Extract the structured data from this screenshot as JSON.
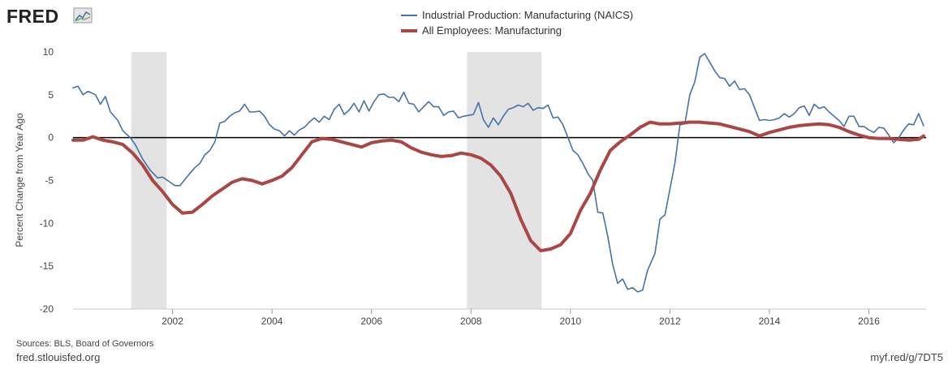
{
  "logo": {
    "text": "FRED"
  },
  "chart_data": {
    "type": "line",
    "title": "",
    "xlabel": "",
    "ylabel": "Percent Change from Year Ago",
    "xlim": [
      2000.0,
      2017.15
    ],
    "ylim": [
      -20,
      10
    ],
    "y_ticks": [
      10,
      5,
      0,
      -5,
      -10,
      -15,
      -20
    ],
    "x_ticks": [
      2002,
      2004,
      2006,
      2008,
      2010,
      2012,
      2014,
      2016
    ],
    "recessions": [
      [
        2001.17,
        2001.88
      ],
      [
        2007.92,
        2009.42
      ]
    ],
    "zero_line": true,
    "legend_position": "top-center",
    "series": [
      {
        "name": "Industrial Production: Manufacturing (NAICS)",
        "color": "#4572a7",
        "points": [
          [
            2000.0,
            5.8
          ],
          [
            2000.1,
            6.0
          ],
          [
            2000.2,
            5.0
          ],
          [
            2000.3,
            5.4
          ],
          [
            2000.45,
            5.0
          ],
          [
            2000.55,
            3.9
          ],
          [
            2000.65,
            4.8
          ],
          [
            2000.75,
            3.0
          ],
          [
            2000.9,
            2.0
          ],
          [
            2001.0,
            0.8
          ],
          [
            2001.15,
            0.0
          ],
          [
            2001.25,
            -0.8
          ],
          [
            2001.4,
            -2.5
          ],
          [
            2001.55,
            -3.8
          ],
          [
            2001.7,
            -4.7
          ],
          [
            2001.8,
            -4.6
          ],
          [
            2001.95,
            -5.2
          ],
          [
            2002.05,
            -5.6
          ],
          [
            2002.15,
            -5.6
          ],
          [
            2002.3,
            -4.5
          ],
          [
            2002.45,
            -3.5
          ],
          [
            2002.55,
            -3.0
          ],
          [
            2002.65,
            -2.0
          ],
          [
            2002.75,
            -1.5
          ],
          [
            2002.85,
            -0.5
          ],
          [
            2002.95,
            1.7
          ],
          [
            2003.05,
            1.9
          ],
          [
            2003.15,
            2.5
          ],
          [
            2003.25,
            2.9
          ],
          [
            2003.35,
            3.1
          ],
          [
            2003.45,
            3.9
          ],
          [
            2003.55,
            3.0
          ],
          [
            2003.65,
            3.0
          ],
          [
            2003.75,
            3.1
          ],
          [
            2003.85,
            2.5
          ],
          [
            2003.95,
            1.5
          ],
          [
            2004.05,
            1.0
          ],
          [
            2004.15,
            0.8
          ],
          [
            2004.25,
            0.2
          ],
          [
            2004.35,
            0.8
          ],
          [
            2004.45,
            0.3
          ],
          [
            2004.55,
            0.9
          ],
          [
            2004.65,
            1.2
          ],
          [
            2004.75,
            1.8
          ],
          [
            2004.85,
            2.3
          ],
          [
            2004.95,
            1.8
          ],
          [
            2005.05,
            2.5
          ],
          [
            2005.15,
            2.1
          ],
          [
            2005.25,
            3.3
          ],
          [
            2005.35,
            3.9
          ],
          [
            2005.45,
            2.7
          ],
          [
            2005.55,
            3.2
          ],
          [
            2005.65,
            4.0
          ],
          [
            2005.75,
            3.0
          ],
          [
            2005.85,
            4.3
          ],
          [
            2005.95,
            3.1
          ],
          [
            2006.05,
            4.2
          ],
          [
            2006.15,
            5.0
          ],
          [
            2006.25,
            5.1
          ],
          [
            2006.35,
            4.7
          ],
          [
            2006.45,
            4.7
          ],
          [
            2006.55,
            4.2
          ],
          [
            2006.65,
            5.3
          ],
          [
            2006.75,
            4.0
          ],
          [
            2006.85,
            3.9
          ],
          [
            2006.95,
            3.0
          ],
          [
            2007.05,
            3.6
          ],
          [
            2007.15,
            4.2
          ],
          [
            2007.25,
            3.6
          ],
          [
            2007.35,
            3.6
          ],
          [
            2007.45,
            2.6
          ],
          [
            2007.55,
            3.0
          ],
          [
            2007.65,
            3.1
          ],
          [
            2007.75,
            2.3
          ],
          [
            2007.85,
            2.5
          ],
          [
            2007.95,
            2.6
          ],
          [
            2008.05,
            2.7
          ],
          [
            2008.15,
            4.1
          ],
          [
            2008.25,
            2.1
          ],
          [
            2008.35,
            1.2
          ],
          [
            2008.45,
            2.3
          ],
          [
            2008.55,
            1.5
          ],
          [
            2008.65,
            2.5
          ],
          [
            2008.75,
            3.3
          ],
          [
            2008.85,
            3.5
          ],
          [
            2008.95,
            3.8
          ],
          [
            2009.05,
            3.6
          ],
          [
            2009.15,
            4.0
          ],
          [
            2009.25,
            3.2
          ],
          [
            2009.35,
            3.5
          ],
          [
            2009.45,
            3.4
          ],
          [
            2009.55,
            3.8
          ],
          [
            2009.65,
            2.3
          ],
          [
            2009.75,
            2.4
          ],
          [
            2009.85,
            1.5
          ],
          [
            2009.95,
            0.0
          ],
          [
            2010.05,
            -1.5
          ],
          [
            2010.15,
            -2.0
          ],
          [
            2010.25,
            -3.0
          ],
          [
            2010.35,
            -4.2
          ],
          [
            2010.45,
            -5.0
          ],
          [
            2010.55,
            -8.7
          ],
          [
            2010.65,
            -8.8
          ],
          [
            2010.75,
            -11.5
          ],
          [
            2010.85,
            -14.8
          ],
          [
            2010.95,
            -17.0
          ],
          [
            2011.05,
            -16.5
          ],
          [
            2011.15,
            -17.7
          ],
          [
            2011.25,
            -17.5
          ],
          [
            2011.35,
            -18.0
          ],
          [
            2011.45,
            -17.8
          ],
          [
            2011.55,
            -15.5
          ],
          [
            2011.7,
            -13.5
          ],
          [
            2011.8,
            -9.5
          ],
          [
            2011.9,
            -9.0
          ],
          [
            2012.0,
            -6.0
          ],
          [
            2012.1,
            -3.0
          ],
          [
            2012.2,
            1.5
          ],
          [
            2012.3,
            1.6
          ],
          [
            2012.4,
            5.0
          ],
          [
            2012.5,
            6.5
          ],
          [
            2012.6,
            9.4
          ],
          [
            2012.7,
            9.8
          ],
          [
            2012.8,
            8.8
          ],
          [
            2012.9,
            7.8
          ],
          [
            2013.0,
            7.0
          ],
          [
            2013.1,
            6.9
          ],
          [
            2013.2,
            6.0
          ],
          [
            2013.3,
            6.6
          ],
          [
            2013.4,
            5.6
          ],
          [
            2013.5,
            5.7
          ],
          [
            2013.6,
            5.0
          ],
          [
            2013.7,
            3.5
          ],
          [
            2013.8,
            2.0
          ],
          [
            2013.9,
            2.1
          ],
          [
            2014.0,
            2.0
          ],
          [
            2014.1,
            2.1
          ],
          [
            2014.2,
            2.3
          ],
          [
            2014.3,
            2.8
          ],
          [
            2014.4,
            2.4
          ],
          [
            2014.5,
            2.8
          ],
          [
            2014.6,
            3.5
          ],
          [
            2014.7,
            3.7
          ],
          [
            2014.8,
            2.6
          ],
          [
            2014.9,
            3.9
          ],
          [
            2015.0,
            3.4
          ],
          [
            2015.1,
            3.6
          ],
          [
            2015.2,
            3.0
          ],
          [
            2015.3,
            2.5
          ],
          [
            2015.4,
            2.0
          ],
          [
            2015.5,
            1.3
          ],
          [
            2015.6,
            2.5
          ],
          [
            2015.7,
            2.5
          ],
          [
            2015.8,
            1.3
          ],
          [
            2015.9,
            1.3
          ],
          [
            2016.0,
            0.9
          ],
          [
            2016.1,
            0.6
          ],
          [
            2016.2,
            1.2
          ],
          [
            2016.3,
            1.1
          ],
          [
            2016.4,
            0.3
          ],
          [
            2016.5,
            -0.6
          ],
          [
            2016.6,
            0.0
          ],
          [
            2016.7,
            0.9
          ],
          [
            2016.8,
            1.6
          ],
          [
            2016.9,
            1.5
          ],
          [
            2017.0,
            2.8
          ],
          [
            2017.1,
            1.4
          ]
        ]
      },
      {
        "name": "All Employees: Manufacturing",
        "color": "#aa4643",
        "points": [
          [
            2000.0,
            -0.3
          ],
          [
            2000.2,
            -0.3
          ],
          [
            2000.4,
            0.1
          ],
          [
            2000.6,
            -0.3
          ],
          [
            2000.8,
            -0.5
          ],
          [
            2001.0,
            -0.8
          ],
          [
            2001.2,
            -1.8
          ],
          [
            2001.4,
            -3.2
          ],
          [
            2001.6,
            -5.0
          ],
          [
            2001.8,
            -6.3
          ],
          [
            2002.0,
            -7.8
          ],
          [
            2002.2,
            -8.8
          ],
          [
            2002.4,
            -8.7
          ],
          [
            2002.6,
            -7.8
          ],
          [
            2002.8,
            -6.8
          ],
          [
            2003.0,
            -6.0
          ],
          [
            2003.2,
            -5.2
          ],
          [
            2003.4,
            -4.8
          ],
          [
            2003.6,
            -5.0
          ],
          [
            2003.8,
            -5.4
          ],
          [
            2004.0,
            -5.0
          ],
          [
            2004.2,
            -4.5
          ],
          [
            2004.4,
            -3.5
          ],
          [
            2004.6,
            -2.0
          ],
          [
            2004.8,
            -0.5
          ],
          [
            2005.0,
            -0.1
          ],
          [
            2005.2,
            -0.2
          ],
          [
            2005.4,
            -0.5
          ],
          [
            2005.6,
            -0.8
          ],
          [
            2005.8,
            -1.1
          ],
          [
            2006.0,
            -0.6
          ],
          [
            2006.2,
            -0.4
          ],
          [
            2006.4,
            -0.3
          ],
          [
            2006.6,
            -0.5
          ],
          [
            2006.8,
            -1.2
          ],
          [
            2007.0,
            -1.7
          ],
          [
            2007.2,
            -2.0
          ],
          [
            2007.4,
            -2.2
          ],
          [
            2007.6,
            -2.1
          ],
          [
            2007.8,
            -1.8
          ],
          [
            2008.0,
            -2.0
          ],
          [
            2008.2,
            -2.4
          ],
          [
            2008.4,
            -3.2
          ],
          [
            2008.6,
            -4.5
          ],
          [
            2008.8,
            -6.5
          ],
          [
            2009.0,
            -9.5
          ],
          [
            2009.2,
            -12.0
          ],
          [
            2009.4,
            -13.2
          ],
          [
            2009.6,
            -13.0
          ],
          [
            2009.8,
            -12.5
          ],
          [
            2010.0,
            -11.2
          ],
          [
            2010.2,
            -8.5
          ],
          [
            2010.4,
            -6.5
          ],
          [
            2010.6,
            -3.8
          ],
          [
            2010.8,
            -1.5
          ],
          [
            2011.0,
            -0.5
          ],
          [
            2011.2,
            0.3
          ],
          [
            2011.4,
            1.2
          ],
          [
            2011.6,
            1.8
          ],
          [
            2011.8,
            1.6
          ],
          [
            2012.0,
            1.6
          ],
          [
            2012.2,
            1.7
          ],
          [
            2012.4,
            1.8
          ],
          [
            2012.6,
            1.8
          ],
          [
            2012.8,
            1.7
          ],
          [
            2013.0,
            1.6
          ],
          [
            2013.2,
            1.3
          ],
          [
            2013.4,
            1.0
          ],
          [
            2013.6,
            0.7
          ],
          [
            2013.8,
            0.2
          ],
          [
            2014.0,
            0.6
          ],
          [
            2014.2,
            0.9
          ],
          [
            2014.4,
            1.2
          ],
          [
            2014.6,
            1.4
          ],
          [
            2014.8,
            1.5
          ],
          [
            2015.0,
            1.6
          ],
          [
            2015.2,
            1.5
          ],
          [
            2015.4,
            1.2
          ],
          [
            2015.6,
            0.7
          ],
          [
            2015.8,
            0.3
          ],
          [
            2016.0,
            0.0
          ],
          [
            2016.2,
            -0.1
          ],
          [
            2016.4,
            -0.1
          ],
          [
            2016.6,
            -0.2
          ],
          [
            2016.8,
            -0.3
          ],
          [
            2017.0,
            -0.2
          ],
          [
            2017.1,
            0.2
          ]
        ]
      }
    ]
  },
  "footer": {
    "sources": "Sources: BLS, Board of Governors",
    "site": "fred.stlouisfed.org",
    "short_url": "myf.red/g/7DT5"
  }
}
